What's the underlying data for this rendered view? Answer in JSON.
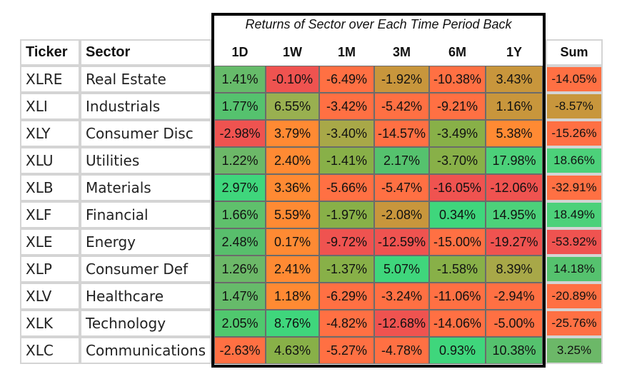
{
  "chart_data": {
    "type": "table",
    "title": "Returns of Sector over Each Time Period Back",
    "label_headers": [
      "Ticker",
      "Sector"
    ],
    "periods": [
      "1D",
      "1W",
      "1M",
      "3M",
      "6M",
      "1Y"
    ],
    "sum_header": "Sum",
    "rows": [
      {
        "ticker": "XLRE",
        "sector": "Real Estate",
        "values": [
          "1.41%",
          "-0.10%",
          "-6.49%",
          "-1.92%",
          "-10.38%",
          "3.43%"
        ],
        "sum": "-14.05%"
      },
      {
        "ticker": "XLI",
        "sector": "Industrials",
        "values": [
          "1.77%",
          "6.55%",
          "-3.42%",
          "-5.42%",
          "-9.21%",
          "1.16%"
        ],
        "sum": "-8.57%"
      },
      {
        "ticker": "XLY",
        "sector": "Consumer Disc",
        "values": [
          "-2.98%",
          "3.79%",
          "-3.40%",
          "-14.57%",
          "-3.49%",
          "5.38%"
        ],
        "sum": "-15.26%"
      },
      {
        "ticker": "XLU",
        "sector": "Utilities",
        "values": [
          "1.22%",
          "2.40%",
          "-1.41%",
          "2.17%",
          "-3.70%",
          "17.98%"
        ],
        "sum": "18.66%"
      },
      {
        "ticker": "XLB",
        "sector": "Materials",
        "values": [
          "2.97%",
          "3.36%",
          "-5.66%",
          "-5.47%",
          "-16.05%",
          "-12.06%"
        ],
        "sum": "-32.91%"
      },
      {
        "ticker": "XLF",
        "sector": "Financial",
        "values": [
          "1.66%",
          "5.59%",
          "-1.97%",
          "-2.08%",
          "0.34%",
          "14.95%"
        ],
        "sum": "18.49%"
      },
      {
        "ticker": "XLE",
        "sector": "Energy",
        "values": [
          "2.48%",
          "0.17%",
          "-9.72%",
          "-12.59%",
          "-15.00%",
          "-19.27%"
        ],
        "sum": "-53.92%"
      },
      {
        "ticker": "XLP",
        "sector": "Consumer Def",
        "values": [
          "1.26%",
          "2.41%",
          "-1.37%",
          "5.07%",
          "-1.58%",
          "8.39%"
        ],
        "sum": "14.18%"
      },
      {
        "ticker": "XLV",
        "sector": "Healthcare",
        "values": [
          "1.47%",
          "1.18%",
          "-6.29%",
          "-3.24%",
          "-11.06%",
          "-2.94%"
        ],
        "sum": "-20.89%"
      },
      {
        "ticker": "XLK",
        "sector": "Technology",
        "values": [
          "2.05%",
          "8.76%",
          "-4.82%",
          "-12.68%",
          "-14.06%",
          "-5.00%"
        ],
        "sum": "-25.76%"
      },
      {
        "ticker": "XLC",
        "sector": "Communications",
        "values": [
          "-2.63%",
          "4.63%",
          "-5.27%",
          "-4.78%",
          "0.93%",
          "10.38%"
        ],
        "sum": "3.25%"
      }
    ]
  },
  "colors": {
    "cells": [
      [
        "#66bb6a",
        "#ef5350",
        "#ff7043",
        "#c8963c",
        "#ff7043",
        "#c8963c"
      ],
      [
        "#55c26e",
        "#99b050",
        "#ff7043",
        "#ff7043",
        "#ff7043",
        "#c8963c"
      ],
      [
        "#ef5350",
        "#ff8a33",
        "#a8a848",
        "#ff7043",
        "#88b048",
        "#ff8a33"
      ],
      [
        "#6cb868",
        "#ff8a33",
        "#88b048",
        "#55c26e",
        "#88b048",
        "#4cd17a"
      ],
      [
        "#3fd67c",
        "#ff8a33",
        "#ff7043",
        "#ff7043",
        "#ef5350",
        "#ef5350"
      ],
      [
        "#5fc06c",
        "#ff8a33",
        "#88b048",
        "#c8963c",
        "#3fd67c",
        "#4cd17a"
      ],
      [
        "#58be6c",
        "#ff8a33",
        "#ef5350",
        "#ef5350",
        "#ff7043",
        "#ef5350"
      ],
      [
        "#6cb868",
        "#ff8a33",
        "#88b048",
        "#3fd67c",
        "#88b048",
        "#a8a848"
      ],
      [
        "#66bb6a",
        "#ff8a33",
        "#ff7043",
        "#ff7043",
        "#ff7043",
        "#ff7043"
      ],
      [
        "#50c86e",
        "#3fd67c",
        "#ff7043",
        "#ef5350",
        "#ff7043",
        "#ff7043"
      ],
      [
        "#ff7043",
        "#88b048",
        "#ff7043",
        "#ff7043",
        "#3fd67c",
        "#55c26e"
      ]
    ],
    "sums": [
      "#ff7043",
      "#c8963c",
      "#ff7043",
      "#4cd17a",
      "#ff7043",
      "#4cd17a",
      "#ef5350",
      "#55c26e",
      "#ff7043",
      "#ff7043",
      "#6cb868"
    ]
  }
}
